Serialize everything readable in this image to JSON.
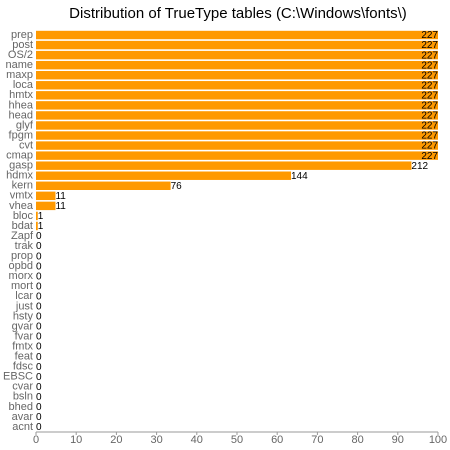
{
  "chart_data": {
    "type": "hbar",
    "title": "Distribution of TrueType tables (C:\\Windows\\fonts\\)",
    "categories": [
      "prep",
      "post",
      "OS/2",
      "name",
      "maxp",
      "loca",
      "hmtx",
      "hhea",
      "head",
      "glyf",
      "fpgm",
      "cvt",
      "cmap",
      "gasp",
      "hdmx",
      "kern",
      "vmtx",
      "vhea",
      "bloc",
      "bdat",
      "Zapf",
      "trak",
      "prop",
      "opbd",
      "morx",
      "mort",
      "lcar",
      "just",
      "hsty",
      "gvar",
      "fvar",
      "fmtx",
      "feat",
      "fdsc",
      "EBSC",
      "cvar",
      "bsln",
      "bhed",
      "avar",
      "acnt"
    ],
    "values": [
      227,
      227,
      227,
      227,
      227,
      227,
      227,
      227,
      227,
      227,
      227,
      227,
      227,
      212,
      144,
      76,
      11,
      11,
      1,
      1,
      0,
      0,
      0,
      0,
      0,
      0,
      0,
      0,
      0,
      0,
      0,
      0,
      0,
      0,
      0,
      0,
      0,
      0,
      0,
      0
    ],
    "color": "#ff9900",
    "xlim": [
      0,
      227
    ],
    "xticks": [
      {
        "value": 0,
        "label": "0"
      },
      {
        "value": 22.7,
        "label": "10"
      },
      {
        "value": 45.4,
        "label": "20"
      },
      {
        "value": 68.1,
        "label": "30"
      },
      {
        "value": 90.8,
        "label": "40"
      },
      {
        "value": 113.5,
        "label": "50"
      },
      {
        "value": 136.2,
        "label": "60"
      },
      {
        "value": 158.9,
        "label": "70"
      },
      {
        "value": 181.6,
        "label": "80"
      },
      {
        "value": 204.3,
        "label": "90"
      },
      {
        "value": 227,
        "label": "100"
      }
    ]
  }
}
